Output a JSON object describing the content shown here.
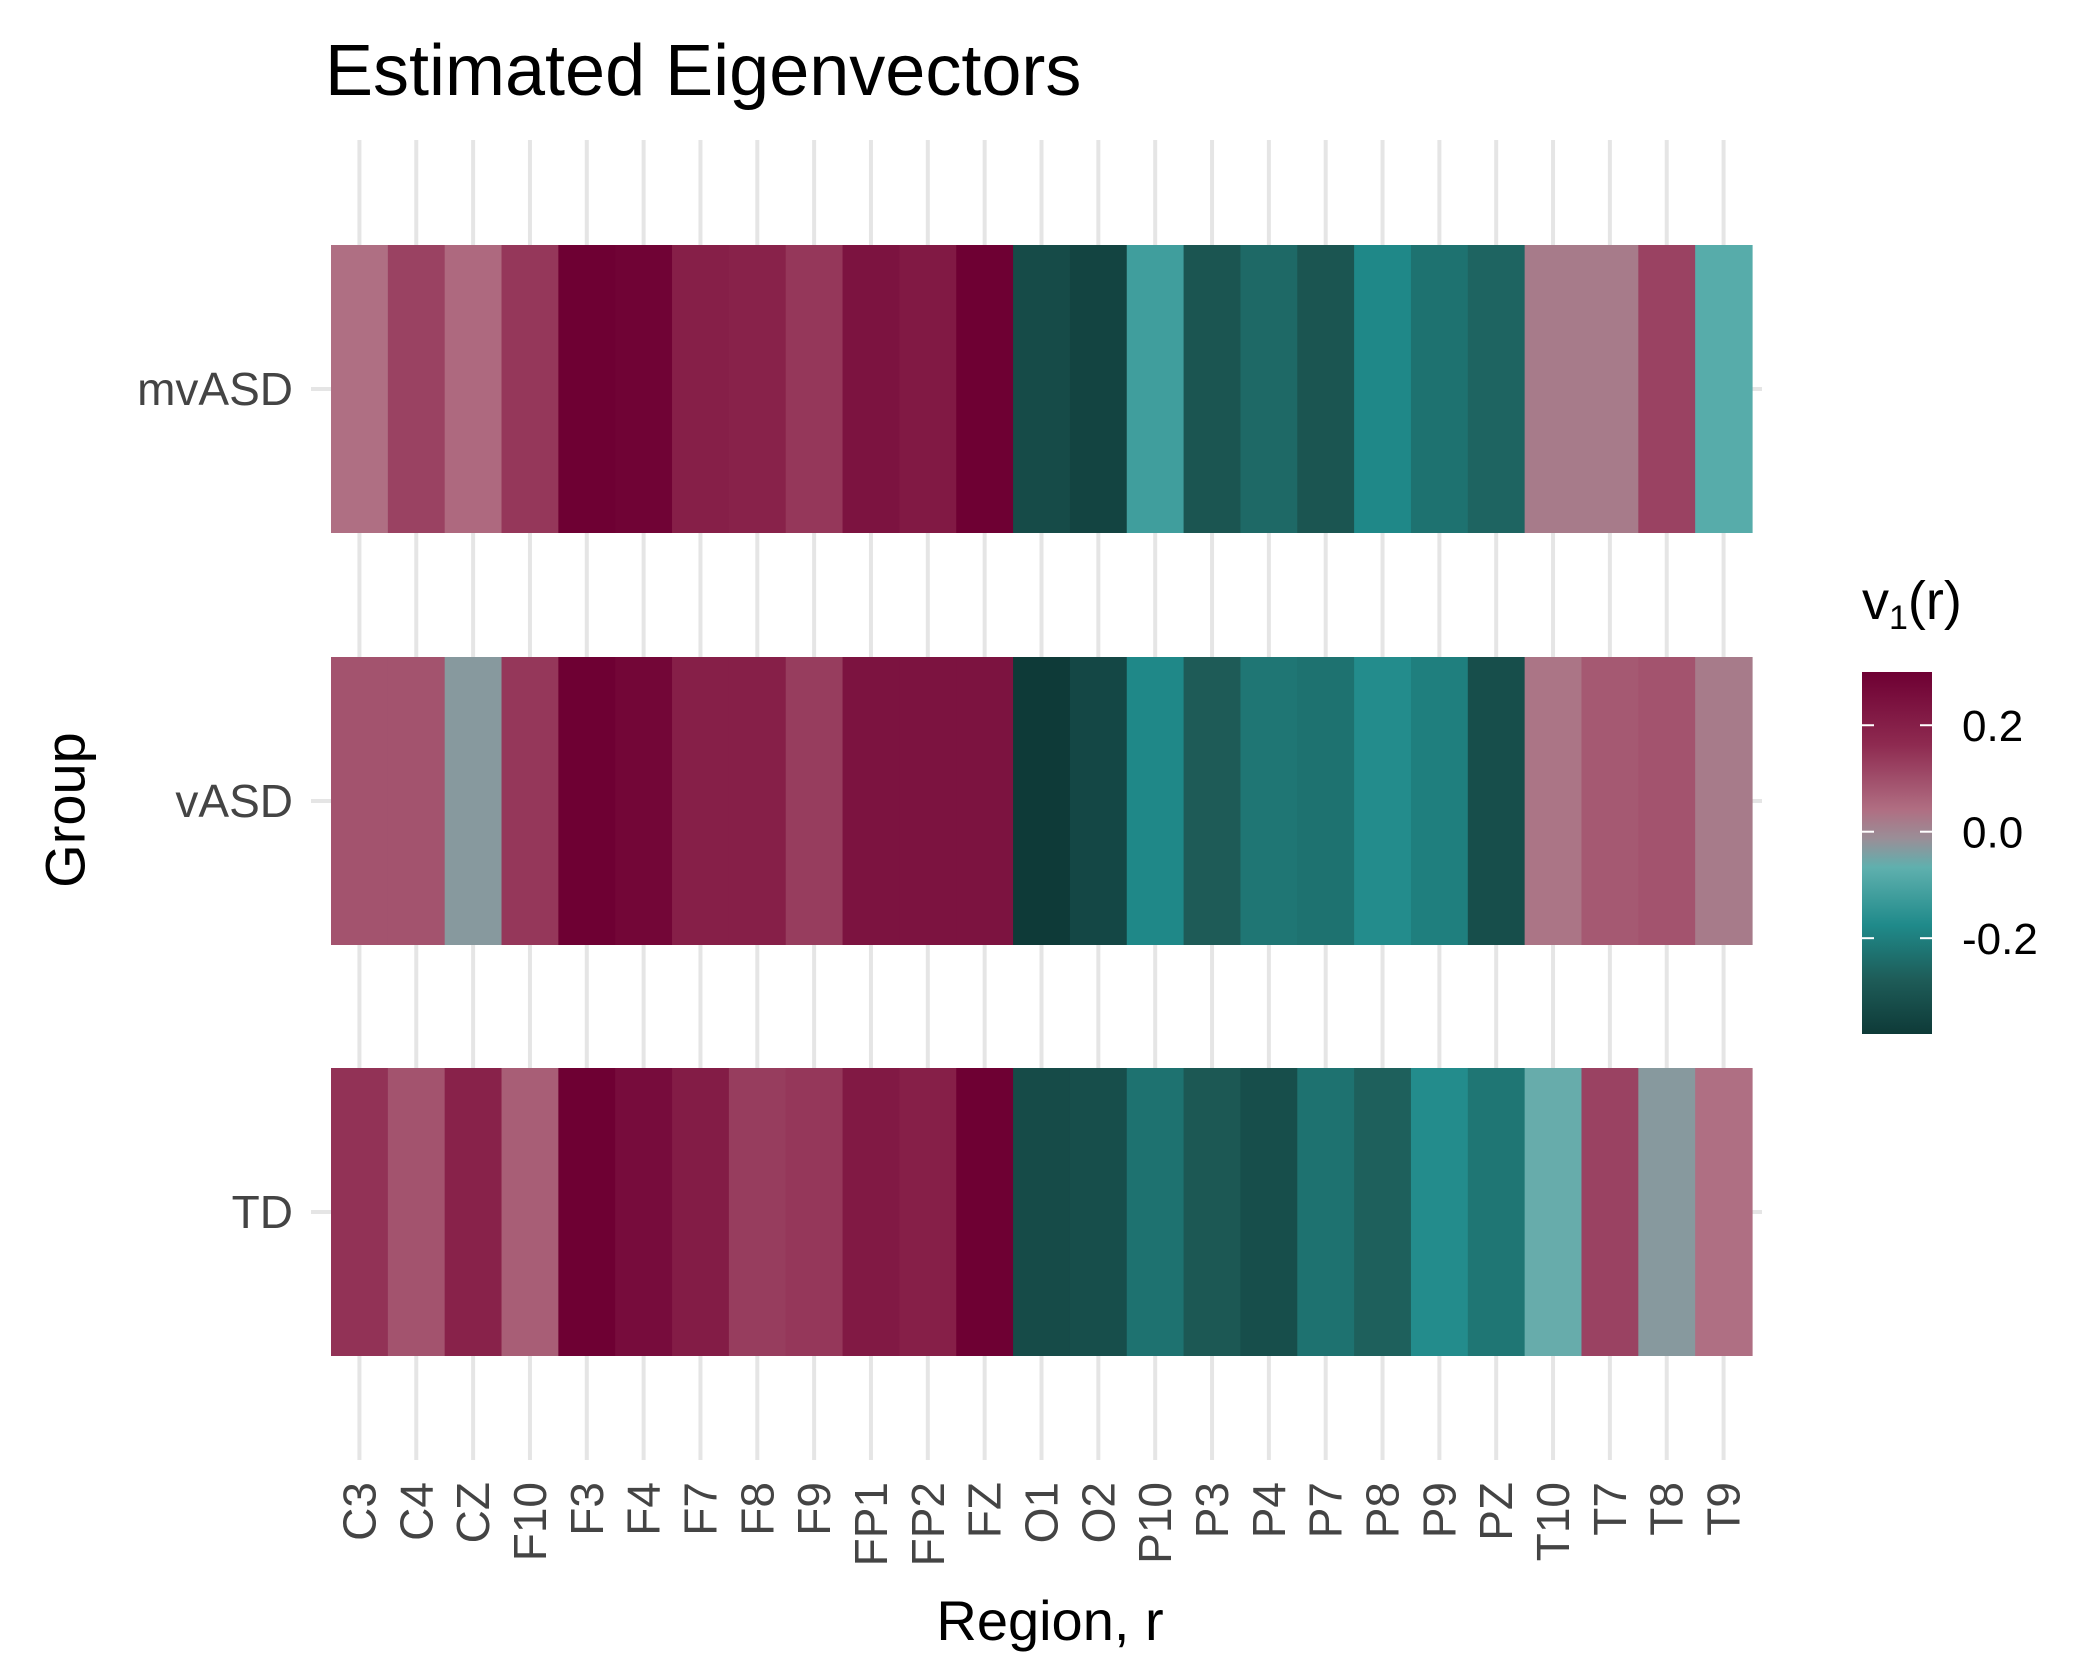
{
  "chart_data": {
    "type": "heatmap",
    "title": "Estimated Eigenvectors",
    "xlabel": "Region, r",
    "ylabel": "Group",
    "legend": {
      "title_base": "v",
      "title_sub": "1",
      "title_suffix": "(r)",
      "ticks": [
        0.2,
        0.0,
        -0.2
      ],
      "tick_labels": [
        "0.2",
        "0.0",
        "-0.2"
      ],
      "range": [
        -0.38,
        0.3
      ],
      "placement": "right"
    },
    "grid": true,
    "x": [
      "C3",
      "C4",
      "CZ",
      "F10",
      "F3",
      "F4",
      "F7",
      "F8",
      "F9",
      "FP1",
      "FP2",
      "FZ",
      "O1",
      "O2",
      "P10",
      "P3",
      "P4",
      "P7",
      "P8",
      "P9",
      "PZ",
      "T10",
      "T7",
      "T8",
      "T9"
    ],
    "y": [
      "mvASD",
      "vASD",
      "TD"
    ],
    "values": [
      [
        0.04,
        0.12,
        0.05,
        0.14,
        0.3,
        0.29,
        0.2,
        0.19,
        0.14,
        0.24,
        0.22,
        0.3,
        -0.33,
        -0.35,
        -0.12,
        -0.3,
        -0.25,
        -0.3,
        -0.18,
        -0.23,
        -0.26,
        0.02,
        0.02,
        0.12,
        -0.08
      ],
      [
        0.09,
        0.09,
        -0.03,
        0.14,
        0.3,
        0.28,
        0.2,
        0.2,
        0.13,
        0.24,
        0.24,
        0.24,
        -0.38,
        -0.34,
        -0.18,
        -0.28,
        -0.22,
        -0.23,
        -0.17,
        -0.2,
        -0.32,
        0.03,
        0.08,
        0.09,
        0.02
      ],
      [
        0.15,
        0.09,
        0.19,
        0.07,
        0.3,
        0.26,
        0.21,
        0.13,
        0.14,
        0.22,
        0.2,
        0.3,
        -0.33,
        -0.32,
        -0.23,
        -0.29,
        -0.32,
        -0.23,
        -0.27,
        -0.17,
        -0.22,
        -0.06,
        0.12,
        -0.03,
        0.04
      ]
    ]
  },
  "colors": {
    "high": "#6e0033",
    "mid_high": "#b06e82",
    "mid": "#9a8e97",
    "mid_low": "#5fb0ae",
    "low_mid": "#1f8a8a",
    "low": "#0e3a38",
    "grid": "#e5e5e5",
    "tick_text": "#444444"
  }
}
